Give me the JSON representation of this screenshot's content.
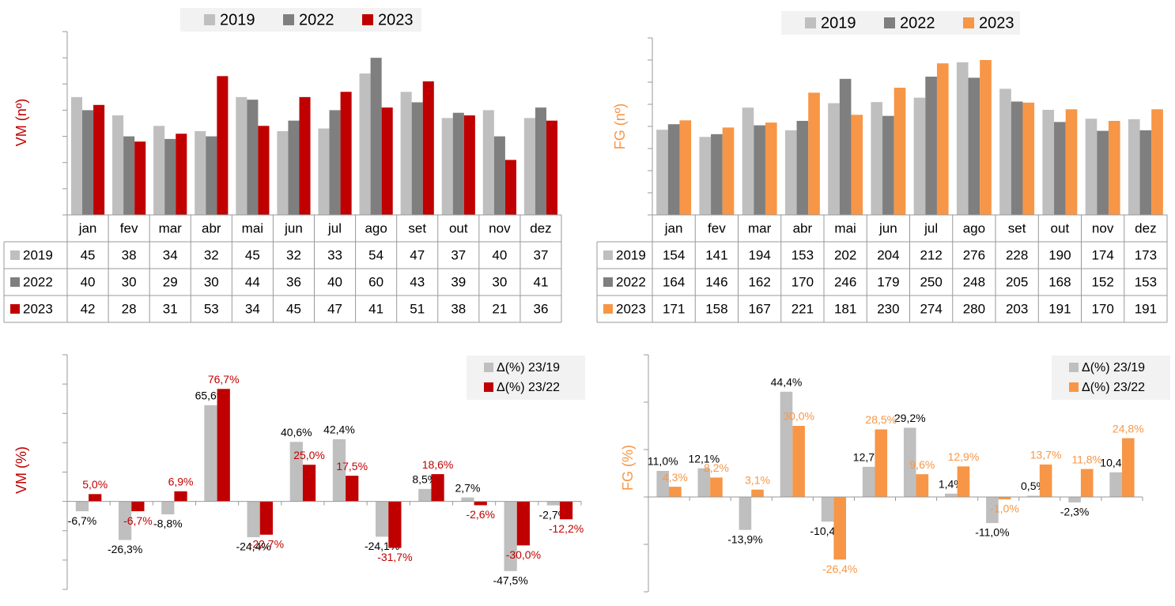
{
  "chart_data": [
    {
      "type": "bar",
      "y_label": "VM (nº)",
      "y_label_color": "#c00000",
      "legend": "top",
      "data_table": true,
      "categories": [
        "jan",
        "fev",
        "mar",
        "abr",
        "mai",
        "jun",
        "jul",
        "ago",
        "set",
        "out",
        "nov",
        "dez"
      ],
      "series": [
        {
          "name": "2019",
          "color": "#bfbfbf",
          "values": [
            45,
            38,
            34,
            32,
            45,
            32,
            33,
            54,
            47,
            37,
            40,
            37
          ]
        },
        {
          "name": "2022",
          "color": "#7f7f7f",
          "values": [
            40,
            30,
            29,
            30,
            44,
            36,
            40,
            60,
            43,
            39,
            30,
            41
          ]
        },
        {
          "name": "2023",
          "color": "#c00000",
          "values": [
            42,
            28,
            31,
            53,
            34,
            45,
            47,
            41,
            51,
            38,
            21,
            36
          ]
        }
      ],
      "ylim": [
        0,
        70
      ],
      "yticks": [
        0,
        10,
        20,
        30,
        40,
        50,
        60,
        70
      ]
    },
    {
      "type": "bar",
      "y_label": "FG (nº)",
      "y_label_color": "#f79646",
      "legend": "top",
      "data_table": true,
      "categories": [
        "jan",
        "fev",
        "mar",
        "abr",
        "mai",
        "jun",
        "jul",
        "ago",
        "set",
        "out",
        "nov",
        "dez"
      ],
      "series": [
        {
          "name": "2019",
          "color": "#bfbfbf",
          "values": [
            154,
            141,
            194,
            153,
            202,
            204,
            212,
            276,
            228,
            190,
            174,
            173
          ]
        },
        {
          "name": "2022",
          "color": "#7f7f7f",
          "values": [
            164,
            146,
            162,
            170,
            246,
            179,
            250,
            248,
            205,
            168,
            152,
            153
          ]
        },
        {
          "name": "2023",
          "color": "#f79646",
          "values": [
            171,
            158,
            167,
            221,
            181,
            230,
            274,
            280,
            203,
            191,
            170,
            191
          ]
        }
      ],
      "ylim": [
        0,
        320
      ],
      "yticks": [
        0,
        40,
        80,
        120,
        160,
        200,
        240,
        280,
        320
      ]
    },
    {
      "type": "bar",
      "y_label": "VM (%)",
      "y_label_color": "#c00000",
      "legend": "top-right",
      "data_table": false,
      "series": [
        {
          "name": "Δ(%) 23/19",
          "color": "#bfbfbf",
          "label_color": "#000000",
          "values": [
            -6.7,
            -26.3,
            -8.8,
            65.6,
            -24.4,
            40.6,
            42.4,
            -24.1,
            8.5,
            2.7,
            -47.5,
            -2.7
          ],
          "value_labels": [
            "-6,7%",
            "-26,3%",
            "-8,8%",
            "65,6%",
            "-24,4%",
            "40,6%",
            "42,4%",
            "-24,1%",
            "8,5%",
            "2,7%",
            "-47,5%",
            "-2,7%"
          ]
        },
        {
          "name": "Δ(%) 23/22",
          "color": "#c00000",
          "label_color": "#c00000",
          "values": [
            5.0,
            -6.7,
            6.9,
            76.7,
            -22.7,
            25.0,
            17.5,
            -31.7,
            18.6,
            -2.6,
            -30.0,
            -12.2
          ],
          "value_labels": [
            "5,0%",
            "-6,7%",
            "6,9%",
            "76,7%",
            "-22,7%",
            "25,0%",
            "17,5%",
            "-31,7%",
            "18,6%",
            "-2,6%",
            "-30,0%",
            "-12,2%"
          ]
        }
      ],
      "ylim": [
        -60,
        100
      ],
      "yticks": [
        -60,
        -40,
        -20,
        0,
        20,
        40,
        60,
        80,
        100
      ]
    },
    {
      "type": "bar",
      "y_label": "FG (%)",
      "y_label_color": "#f79646",
      "legend": "top-right",
      "data_table": false,
      "series": [
        {
          "name": "Δ(%) 23/19",
          "color": "#bfbfbf",
          "label_color": "#000000",
          "values": [
            11.0,
            12.1,
            -13.9,
            44.4,
            -10.4,
            12.7,
            29.2,
            1.4,
            -11.0,
            0.5,
            -2.3,
            10.4
          ],
          "value_labels": [
            "11,0%",
            "12,1%",
            "-13,9%",
            "44,4%",
            "-10,4%",
            "12,7%",
            "29,2%",
            "1,4%",
            "-11,0%",
            "0,5%",
            "-2,3%",
            "10,4%"
          ]
        },
        {
          "name": "Δ(%) 23/22",
          "color": "#f79646",
          "label_color": "#f79646",
          "values": [
            4.3,
            8.2,
            3.1,
            30.0,
            -26.4,
            28.5,
            9.6,
            12.9,
            -1.0,
            13.7,
            11.8,
            24.8
          ],
          "value_labels": [
            "4,3%",
            "8,2%",
            "3,1%",
            "30,0%",
            "-26,4%",
            "28,5%",
            "9,6%",
            "12,9%",
            "-1,0%",
            "13,7%",
            "11,8%",
            "24,8%"
          ]
        }
      ],
      "ylim": [
        -40,
        60
      ],
      "yticks": [
        -40,
        -20,
        0,
        20,
        40,
        60
      ]
    }
  ]
}
